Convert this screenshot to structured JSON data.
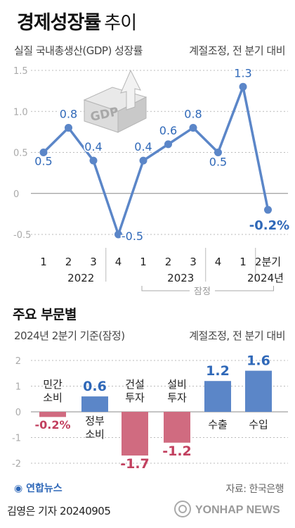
{
  "title": {
    "main": "경제성장률",
    "sub": "추이"
  },
  "chart_data": [
    {
      "type": "line",
      "subtitle": "실질 국내총생산(GDP) 성장률",
      "note": "계절조정, 전 분기 대비",
      "quarters": [
        "1",
        "2",
        "3",
        "4",
        "1",
        "2",
        "3",
        "4",
        "1",
        "2분기"
      ],
      "year_labels": [
        "2022",
        "2023",
        "2024년"
      ],
      "values": [
        0.5,
        0.8,
        0.4,
        -0.5,
        0.4,
        0.6,
        0.8,
        0.5,
        1.3,
        -0.2
      ],
      "value_labels": [
        "0.5",
        "0.8",
        "0.4",
        "-0.5",
        "0.4",
        "0.6",
        "0.8",
        "0.5",
        "1.3",
        "-0.2%"
      ],
      "yticks": [
        "1.5",
        "1.0",
        "0.5",
        "0",
        "-0.5"
      ],
      "ylim": [
        -0.6,
        1.55
      ],
      "preliminary_label": "잠정",
      "icon_text": "GDP",
      "line_color": "#5b86c8"
    },
    {
      "type": "bar",
      "title": "주요 부문별",
      "subtitle": "2024년 2분기 기준(잠정)",
      "note": "계절조정, 전 분기 대비",
      "categories": [
        [
          "민간",
          "소비"
        ],
        [
          "정부",
          "소비"
        ],
        [
          "건설",
          "투자"
        ],
        [
          "설비",
          "투자"
        ],
        [
          "수출"
        ],
        [
          "수입"
        ]
      ],
      "values": [
        -0.2,
        0.6,
        -1.7,
        -1.2,
        1.2,
        1.6
      ],
      "value_labels": [
        "-0.2%",
        "0.6",
        "-1.7",
        "-1.2",
        "1.2",
        "1.6"
      ],
      "yticks": [
        "2",
        "1",
        "0",
        "-1",
        "-2"
      ],
      "ylim": [
        -2,
        2
      ],
      "positive_color": "#5b86c8",
      "negative_color": "#d06b80"
    }
  ],
  "source": "자료: 한국은행",
  "logo": "연합뉴스",
  "credit": "김영은 기자  20240905",
  "watermark": "YONHAP NEWS"
}
